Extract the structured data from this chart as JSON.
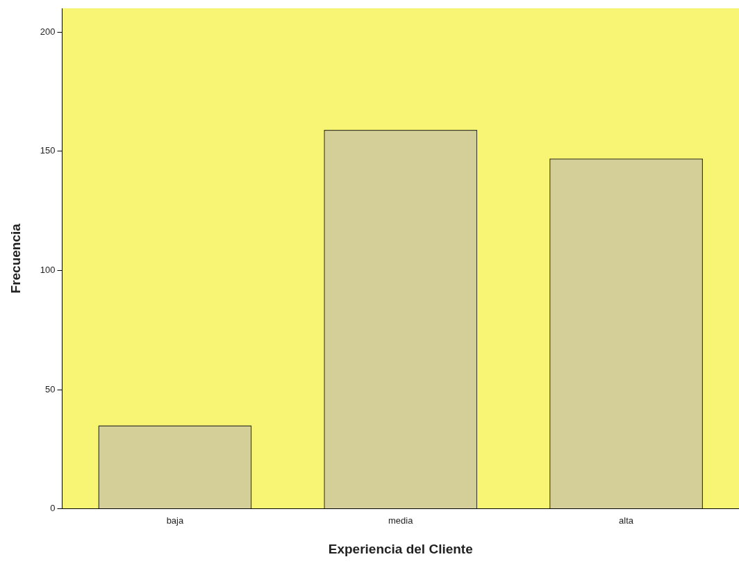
{
  "chart_data": {
    "type": "bar",
    "xlabel": "Experiencia del Cliente",
    "ylabel": "Frecuencia",
    "categories": [
      "baja",
      "media",
      "alta"
    ],
    "values": [
      35,
      159,
      147
    ],
    "color": "#d4cf98",
    "ylim": [
      0,
      210
    ],
    "yticks": [
      0,
      50,
      100,
      150,
      200
    ],
    "grid": false,
    "legend": false
  }
}
